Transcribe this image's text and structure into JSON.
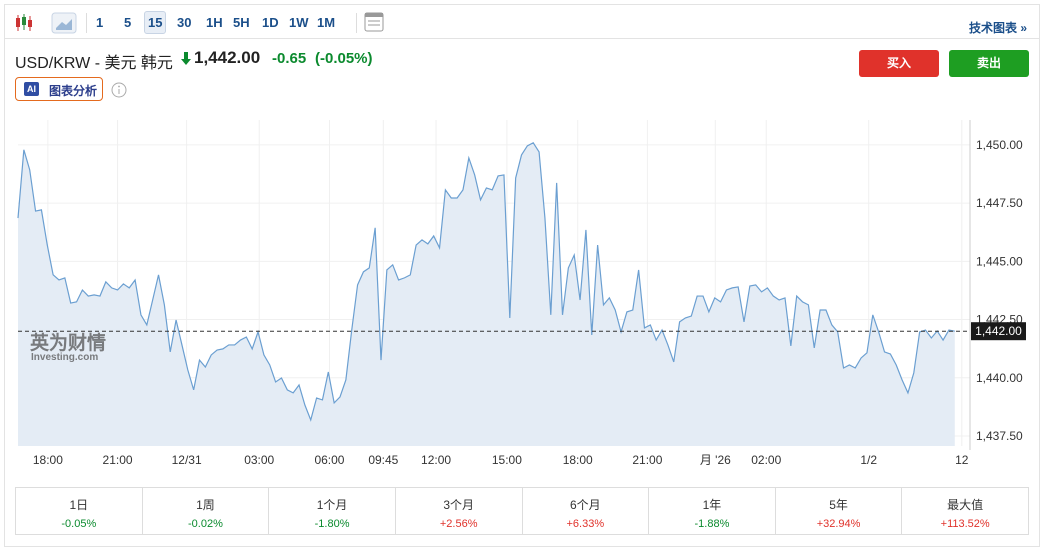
{
  "toolbar": {
    "intervals": [
      "1",
      "5",
      "15",
      "30",
      "1H",
      "5H",
      "1D",
      "1W",
      "1M"
    ],
    "tech_link": "技术图表 »"
  },
  "header": {
    "pair": "USD/KRW - 美元 韩元",
    "price": "1,442.00",
    "change": "-0.65",
    "change_pct": "(-0.05%)",
    "buy": "买入",
    "sell": "卖出",
    "ai_badge": "AI",
    "ai_label": "图表分析"
  },
  "chart_data": {
    "type": "area",
    "color": "#6b9fd1",
    "fill": "#e4ecf5",
    "grid": true,
    "watermark": {
      "brand": "英为财情",
      "site": "Investing.com"
    },
    "values": [
      1446.86,
      1449.79,
      1448.93,
      1447.16,
      1447.21,
      1445.7,
      1444.42,
      1444.2,
      1444.29,
      1443.21,
      1443.26,
      1443.77,
      1443.51,
      1443.56,
      1443.51,
      1444.12,
      1443.86,
      1443.77,
      1444.03,
      1443.86,
      1444.2,
      1442.7,
      1442.27,
      1443.34,
      1444.42,
      1443.13,
      1441.11,
      1442.48,
      1441.41,
      1440.34,
      1439.48,
      1440.76,
      1440.46,
      1440.98,
      1441.19,
      1441.24,
      1441.41,
      1441.41,
      1441.62,
      1441.75,
      1441.24,
      1441.97,
      1440.98,
      1440.55,
      1439.82,
      1439.99,
      1439.48,
      1439.35,
      1439.69,
      1438.83,
      1438.19,
      1439.13,
      1439.05,
      1440.25,
      1438.92,
      1439.18,
      1439.91,
      1442.05,
      1443.99,
      1444.55,
      1444.72,
      1446.44,
      1440.76,
      1444.63,
      1444.85,
      1444.2,
      1444.29,
      1444.42,
      1445.7,
      1445.92,
      1445.75,
      1446.09,
      1445.58,
      1448.07,
      1447.72,
      1447.72,
      1448.07,
      1449.44,
      1448.71,
      1447.64,
      1448.15,
      1448.07,
      1448.67,
      1448.71,
      1442.57,
      1448.58,
      1449.57,
      1449.96,
      1450.09,
      1449.7,
      1446.86,
      1442.7,
      1448.37,
      1442.7,
      1444.72,
      1445.27,
      1443.34,
      1446.35,
      1441.84,
      1445.7,
      1443.13,
      1443.43,
      1442.91,
      1441.97,
      1442.83,
      1442.91,
      1444.63,
      1442.14,
      1442.27,
      1441.62,
      1442.05,
      1441.41,
      1440.68,
      1442.4,
      1442.57,
      1442.65,
      1443.51,
      1443.51,
      1442.83,
      1443.43,
      1443.26,
      1443.77,
      1443.86,
      1443.9,
      1442.4,
      1443.94,
      1443.99,
      1443.69,
      1443.86,
      1443.51,
      1443.34,
      1443.43,
      1441.37,
      1443.51,
      1443.26,
      1443.13,
      1441.28,
      1442.91,
      1442.91,
      1442.27,
      1441.97,
      1440.42,
      1440.55,
      1440.42,
      1440.85,
      1441.07,
      1442.7,
      1441.97,
      1441.11,
      1441.02,
      1440.55,
      1439.91,
      1439.35,
      1440.21,
      1441.97,
      1442.05,
      1441.71,
      1442.01,
      1441.62,
      1442.05,
      1442.0
    ],
    "xlim": [
      0,
      162.6
    ],
    "xticks": [
      {
        "value": 5.1,
        "label": "18:00"
      },
      {
        "value": 17.0,
        "label": "21:00"
      },
      {
        "value": 28.8,
        "label": "12/31"
      },
      {
        "value": 41.2,
        "label": "03:00"
      },
      {
        "value": 53.2,
        "label": "06:00"
      },
      {
        "value": 62.4,
        "label": "09:45"
      },
      {
        "value": 71.4,
        "label": "12:00"
      },
      {
        "value": 83.5,
        "label": "15:00"
      },
      {
        "value": 95.6,
        "label": "18:00"
      },
      {
        "value": 107.5,
        "label": "21:00"
      },
      {
        "value": 119.1,
        "label": "月 '26"
      },
      {
        "value": 127.8,
        "label": "02:00"
      },
      {
        "value": 145.3,
        "label": "1/2"
      },
      {
        "value": 161.2,
        "label": "12"
      }
    ],
    "ylim": [
      1437.07,
      1451.07
    ],
    "yticks": [
      {
        "value": 1437.5,
        "label": "1,437.50"
      },
      {
        "value": 1440,
        "label": "1,440.00"
      },
      {
        "value": 1442.5,
        "label": "1,442.50"
      },
      {
        "value": 1445,
        "label": "1,445.00"
      },
      {
        "value": 1447.5,
        "label": "1,447.50"
      },
      {
        "value": 1450,
        "label": "1,450.00"
      }
    ],
    "current": {
      "value": 1442,
      "label": "1,442.00"
    }
  },
  "performance": [
    {
      "period": "1日",
      "change": "-0.05%"
    },
    {
      "period": "1周",
      "change": "-0.02%"
    },
    {
      "period": "1个月",
      "change": "-1.80%"
    },
    {
      "period": "3个月",
      "change": "+2.56%"
    },
    {
      "period": "6个月",
      "change": "+6.33%"
    },
    {
      "period": "1年",
      "change": "-1.88%"
    },
    {
      "period": "5年",
      "change": "+32.94%"
    },
    {
      "period": "最大值",
      "change": "+113.52%"
    }
  ]
}
